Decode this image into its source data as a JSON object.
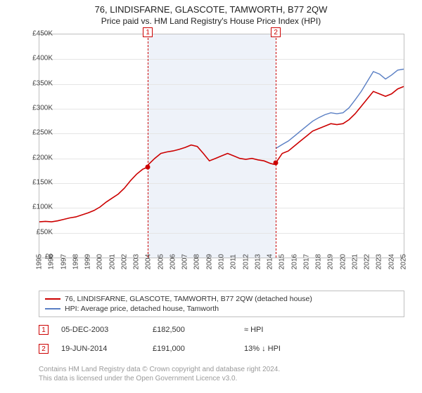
{
  "title": "76, LINDISFARNE, GLASCOTE, TAMWORTH, B77 2QW",
  "subtitle": "Price paid vs. HM Land Registry's House Price Index (HPI)",
  "chart": {
    "type": "line",
    "background_color": "#ffffff",
    "grid_color": "#e5e5e5",
    "border_color": "#bfbfbf",
    "shade_color": "#eef2f9",
    "ylim": [
      0,
      450000
    ],
    "ytick_step": 50000,
    "ytick_labels": [
      "£0",
      "£50K",
      "£100K",
      "£150K",
      "£200K",
      "£250K",
      "£300K",
      "£350K",
      "£400K",
      "£450K"
    ],
    "x_years": [
      1995,
      1996,
      1997,
      1998,
      1999,
      2000,
      2001,
      2002,
      2003,
      2004,
      2005,
      2006,
      2007,
      2008,
      2009,
      2010,
      2011,
      2012,
      2013,
      2014,
      2015,
      2016,
      2017,
      2018,
      2019,
      2020,
      2021,
      2022,
      2023,
      2024,
      2025
    ],
    "shade_ranges": [
      [
        2003.93,
        2014.47
      ]
    ],
    "series": [
      {
        "name": "subject",
        "color": "#cc0000",
        "line_width": 1.6,
        "points": [
          [
            1995.0,
            72000
          ],
          [
            1995.5,
            73000
          ],
          [
            1996.0,
            72000
          ],
          [
            1996.5,
            74000
          ],
          [
            1997.0,
            77000
          ],
          [
            1997.5,
            80000
          ],
          [
            1998.0,
            82000
          ],
          [
            1998.5,
            86000
          ],
          [
            1999.0,
            90000
          ],
          [
            1999.5,
            95000
          ],
          [
            2000.0,
            102000
          ],
          [
            2000.5,
            112000
          ],
          [
            2001.0,
            120000
          ],
          [
            2001.5,
            128000
          ],
          [
            2002.0,
            140000
          ],
          [
            2002.5,
            155000
          ],
          [
            2003.0,
            168000
          ],
          [
            2003.5,
            178000
          ],
          [
            2003.93,
            182500
          ],
          [
            2004.0,
            188000
          ],
          [
            2004.5,
            200000
          ],
          [
            2005.0,
            210000
          ],
          [
            2005.5,
            213000
          ],
          [
            2006.0,
            215000
          ],
          [
            2006.5,
            218000
          ],
          [
            2007.0,
            222000
          ],
          [
            2007.5,
            227000
          ],
          [
            2008.0,
            224000
          ],
          [
            2008.5,
            210000
          ],
          [
            2009.0,
            195000
          ],
          [
            2009.5,
            200000
          ],
          [
            2010.0,
            205000
          ],
          [
            2010.5,
            210000
          ],
          [
            2011.0,
            205000
          ],
          [
            2011.5,
            200000
          ],
          [
            2012.0,
            198000
          ],
          [
            2012.5,
            200000
          ],
          [
            2013.0,
            197000
          ],
          [
            2013.5,
            195000
          ],
          [
            2014.0,
            190000
          ],
          [
            2014.3,
            188000
          ],
          [
            2014.47,
            191000
          ],
          [
            2015.0,
            210000
          ],
          [
            2015.5,
            215000
          ],
          [
            2016.0,
            225000
          ],
          [
            2016.5,
            235000
          ],
          [
            2017.0,
            245000
          ],
          [
            2017.5,
            255000
          ],
          [
            2018.0,
            260000
          ],
          [
            2018.5,
            265000
          ],
          [
            2019.0,
            270000
          ],
          [
            2019.5,
            268000
          ],
          [
            2020.0,
            270000
          ],
          [
            2020.5,
            278000
          ],
          [
            2021.0,
            290000
          ],
          [
            2021.5,
            305000
          ],
          [
            2022.0,
            320000
          ],
          [
            2022.5,
            335000
          ],
          [
            2023.0,
            330000
          ],
          [
            2023.5,
            325000
          ],
          [
            2024.0,
            330000
          ],
          [
            2024.5,
            340000
          ],
          [
            2025.0,
            345000
          ]
        ]
      },
      {
        "name": "hpi",
        "color": "#5a7fc4",
        "line_width": 1.4,
        "points": [
          [
            2014.47,
            220000
          ],
          [
            2015.0,
            228000
          ],
          [
            2015.5,
            235000
          ],
          [
            2016.0,
            245000
          ],
          [
            2016.5,
            255000
          ],
          [
            2017.0,
            265000
          ],
          [
            2017.5,
            275000
          ],
          [
            2018.0,
            282000
          ],
          [
            2018.5,
            288000
          ],
          [
            2019.0,
            292000
          ],
          [
            2019.5,
            290000
          ],
          [
            2020.0,
            292000
          ],
          [
            2020.5,
            302000
          ],
          [
            2021.0,
            318000
          ],
          [
            2021.5,
            335000
          ],
          [
            2022.0,
            355000
          ],
          [
            2022.5,
            375000
          ],
          [
            2023.0,
            370000
          ],
          [
            2023.5,
            360000
          ],
          [
            2024.0,
            368000
          ],
          [
            2024.5,
            378000
          ],
          [
            2025.0,
            380000
          ]
        ]
      }
    ],
    "markers": [
      {
        "n": "1",
        "year": 2003.93,
        "price": 182500
      },
      {
        "n": "2",
        "year": 2014.47,
        "price": 191000
      }
    ]
  },
  "legend": {
    "item1": {
      "color": "#cc0000",
      "label": "76, LINDISFARNE, GLASCOTE, TAMWORTH, B77 2QW (detached house)"
    },
    "item2": {
      "color": "#5a7fc4",
      "label": "HPI: Average price, detached house, Tamworth"
    }
  },
  "sales": [
    {
      "n": "1",
      "date": "05-DEC-2003",
      "price": "£182,500",
      "delta": "≈ HPI"
    },
    {
      "n": "2",
      "date": "19-JUN-2014",
      "price": "£191,000",
      "delta": "13% ↓ HPI"
    }
  ],
  "footer_l1": "Contains HM Land Registry data © Crown copyright and database right 2024.",
  "footer_l2": "This data is licensed under the Open Government Licence v3.0.",
  "colors": {
    "marker_border": "#cc0000",
    "footer_text": "#9a9a9a"
  },
  "fontsize": {
    "title": 13,
    "subtitle": 12,
    "axis": 10,
    "legend": 10.5,
    "footer": 10
  }
}
